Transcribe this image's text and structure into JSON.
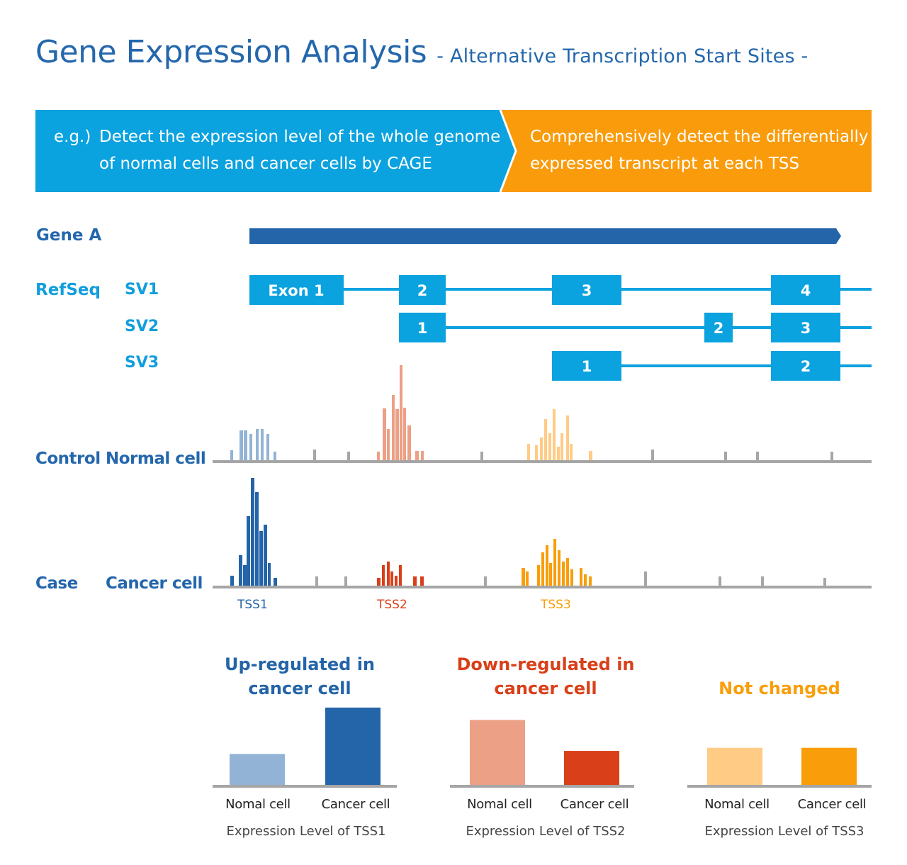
{
  "title": "Gene Expression Analysis",
  "subtitle": "- Alternative Transcription Start Sites -",
  "banner": {
    "eg_label": "e.g.)",
    "left_line1": "Detect the expression level of the whole genome",
    "left_line2": "of normal cells and cancer cells by CAGE",
    "right_line1": "Comprehensively detect the differentially",
    "right_line2": "expressed transcript at each TSS",
    "left_color": "#0aa2df",
    "right_color": "#f99b0a"
  },
  "gene_label": "Gene A",
  "refseq_label": "RefSeq",
  "variants": [
    {
      "name": "SV1",
      "exons": [
        "Exon 1",
        "2",
        "3",
        "4"
      ]
    },
    {
      "name": "SV2",
      "exons": [
        "1",
        "2",
        "3"
      ]
    },
    {
      "name": "SV3",
      "exons": [
        "1",
        "2"
      ]
    }
  ],
  "tracks": {
    "control_group": "Control",
    "control_sample": "Normal cell",
    "case_group": "Case",
    "case_sample": "Cancer cell"
  },
  "tss_labels": [
    "TSS1",
    "TSS2",
    "TSS3"
  ],
  "colors": {
    "tss1": "#2464a8",
    "tss1_light": "#92b3d6",
    "tss2": "#d9401a",
    "tss2_light": "#eca086",
    "tss3": "#f99e0a",
    "tss3_light": "#ffcb85",
    "exon": "#0aa2df",
    "gene": "#2464a8",
    "axis": "#a6a6a6"
  },
  "chart_data": [
    {
      "type": "bar",
      "title": "Up-regulated in cancer cell",
      "categories": [
        "Nomal cell",
        "Cancer cell"
      ],
      "values": [
        2,
        5
      ],
      "caption": "Expression Level of TSS1"
    },
    {
      "type": "bar",
      "title": "Down-regulated in cancer cell",
      "categories": [
        "Nomal cell",
        "Cancer cell"
      ],
      "values": [
        4.2,
        2.2
      ],
      "caption": "Expression Level of TSS2"
    },
    {
      "type": "bar",
      "title": "Not changed",
      "categories": [
        "Nomal cell",
        "Cancer cell"
      ],
      "values": [
        2.4,
        2.4
      ],
      "caption": "Expression Level of TSS3"
    }
  ]
}
